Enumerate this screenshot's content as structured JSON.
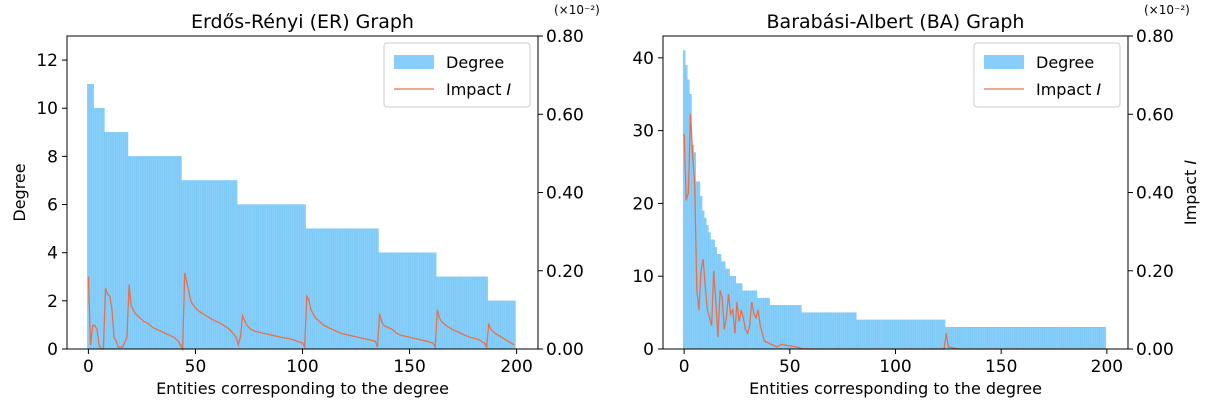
{
  "chart_data": [
    {
      "type": "bar",
      "title": "Erdős-Rényi (ER) Graph",
      "xlabel": "Entities corresponding to the degree",
      "ylabel": "Degree",
      "y2label": "",
      "xlim": [
        -10,
        210
      ],
      "ylim": [
        0,
        13
      ],
      "y2lim": [
        0,
        0.8
      ],
      "y2_multiplier": "(×10⁻²)",
      "x_ticks": [
        0,
        50,
        100,
        150,
        200
      ],
      "y_ticks": [
        0,
        2,
        4,
        6,
        8,
        10,
        12
      ],
      "y2_ticks": [
        "0.00",
        "0.20",
        "0.40",
        "0.60",
        "0.80"
      ],
      "legend": {
        "position": "top-right",
        "entries": [
          "Degree",
          "Impact I"
        ]
      },
      "series": [
        {
          "name": "Degree",
          "kind": "bar",
          "color": "#87cefa",
          "steps": [
            {
              "from": 0,
              "to": 2,
              "value": 11
            },
            {
              "from": 3,
              "to": 7,
              "value": 10
            },
            {
              "from": 8,
              "to": 18,
              "value": 9
            },
            {
              "from": 19,
              "to": 43,
              "value": 8
            },
            {
              "from": 44,
              "to": 69,
              "value": 7
            },
            {
              "from": 70,
              "to": 101,
              "value": 6
            },
            {
              "from": 102,
              "to": 135,
              "value": 5
            },
            {
              "from": 136,
              "to": 162,
              "value": 4
            },
            {
              "from": 163,
              "to": 186,
              "value": 3
            },
            {
              "from": 187,
              "to": 199,
              "value": 2
            }
          ]
        },
        {
          "name": "Impact I",
          "kind": "line",
          "axis": "y2",
          "color": "#e8704d",
          "x": [
            0,
            1,
            2,
            3,
            4,
            5,
            6,
            7,
            8,
            9,
            10,
            11,
            12,
            13,
            14,
            16,
            18,
            19,
            20,
            21,
            22,
            24,
            26,
            28,
            30,
            32,
            34,
            36,
            38,
            40,
            42,
            43,
            44,
            45,
            46,
            47,
            48,
            50,
            52,
            55,
            58,
            62,
            66,
            69,
            70,
            71,
            72,
            74,
            76,
            78,
            82,
            86,
            90,
            95,
            100,
            101,
            102,
            103,
            104,
            106,
            108,
            110,
            114,
            118,
            122,
            126,
            130,
            134,
            135,
            136,
            137,
            138,
            140,
            142,
            144,
            146,
            150,
            154,
            158,
            161,
            162,
            163,
            164,
            165,
            167,
            170,
            174,
            178,
            182,
            185,
            186,
            187,
            188,
            190,
            193,
            196,
            199
          ],
          "values": [
            0.185,
            0.01,
            0.06,
            0.06,
            0.05,
            0.01,
            0.0,
            0.0,
            0.155,
            0.14,
            0.135,
            0.1,
            0.03,
            0.02,
            0.005,
            0.005,
            0.03,
            0.165,
            0.11,
            0.1,
            0.09,
            0.08,
            0.07,
            0.065,
            0.055,
            0.05,
            0.045,
            0.04,
            0.035,
            0.03,
            0.02,
            0.01,
            0.0,
            0.195,
            0.17,
            0.145,
            0.12,
            0.105,
            0.095,
            0.085,
            0.075,
            0.065,
            0.05,
            0.03,
            0.01,
            0.03,
            0.085,
            0.06,
            0.05,
            0.045,
            0.04,
            0.035,
            0.03,
            0.025,
            0.015,
            0.005,
            0.135,
            0.125,
            0.1,
            0.08,
            0.07,
            0.06,
            0.05,
            0.04,
            0.035,
            0.03,
            0.025,
            0.02,
            0.005,
            0.09,
            0.07,
            0.06,
            0.055,
            0.05,
            0.04,
            0.035,
            0.03,
            0.025,
            0.02,
            0.015,
            0.005,
            0.1,
            0.08,
            0.07,
            0.06,
            0.05,
            0.04,
            0.03,
            0.025,
            0.015,
            0.005,
            0.065,
            0.05,
            0.04,
            0.03,
            0.02,
            0.01
          ]
        }
      ]
    },
    {
      "type": "bar",
      "title": "Barabási-Albert (BA) Graph",
      "xlabel": "Entities corresponding to the degree",
      "ylabel": "",
      "y2label": "Impact I",
      "xlim": [
        -10,
        210
      ],
      "ylim": [
        0,
        43
      ],
      "y2lim": [
        0,
        0.8
      ],
      "y2_multiplier": "(×10⁻²)",
      "x_ticks": [
        0,
        50,
        100,
        150,
        200
      ],
      "y_ticks": [
        0,
        10,
        20,
        30,
        40
      ],
      "y2_ticks": [
        "0.00",
        "0.20",
        "0.40",
        "0.60",
        "0.80"
      ],
      "legend": {
        "position": "top-right",
        "entries": [
          "Degree",
          "Impact I"
        ]
      },
      "series": [
        {
          "name": "Degree",
          "kind": "bar",
          "color": "#87cefa",
          "values_head": [
            41,
            39,
            37,
            35,
            28,
            27,
            23,
            23,
            21,
            19,
            18,
            17,
            16,
            15,
            15,
            14,
            13,
            13,
            12,
            12,
            11,
            11,
            10,
            10,
            10,
            9,
            9,
            9,
            8,
            8
          ],
          "steps": [
            {
              "from": 30,
              "to": 34,
              "value": 8
            },
            {
              "from": 35,
              "to": 40,
              "value": 7
            },
            {
              "from": 41,
              "to": 55,
              "value": 6
            },
            {
              "from": 56,
              "to": 81,
              "value": 5
            },
            {
              "from": 82,
              "to": 123,
              "value": 4
            },
            {
              "from": 124,
              "to": 199,
              "value": 3
            }
          ]
        },
        {
          "name": "Impact I",
          "kind": "line",
          "axis": "y2",
          "color": "#e8704d",
          "x": [
            0,
            1,
            2,
            3,
            4,
            5,
            6,
            7,
            8,
            9,
            10,
            11,
            12,
            13,
            14,
            15,
            16,
            17,
            18,
            19,
            20,
            21,
            22,
            23,
            24,
            25,
            26,
            27,
            28,
            29,
            30,
            31,
            32,
            33,
            34,
            35,
            36,
            37,
            38,
            40,
            42,
            44,
            46,
            48,
            50,
            52,
            54,
            55,
            56,
            60,
            65,
            70,
            75,
            80,
            85,
            90,
            95,
            100,
            105,
            110,
            115,
            120,
            122,
            123,
            124,
            125,
            130,
            140,
            150,
            160,
            170,
            180,
            190,
            199
          ],
          "values": [
            0.55,
            0.38,
            0.4,
            0.6,
            0.5,
            0.42,
            0.15,
            0.1,
            0.2,
            0.23,
            0.16,
            0.1,
            0.08,
            0.06,
            0.2,
            0.12,
            0.03,
            0.15,
            0.13,
            0.05,
            0.08,
            0.14,
            0.09,
            0.1,
            0.04,
            0.12,
            0.07,
            0.1,
            0.08,
            0.05,
            0.04,
            0.06,
            0.12,
            0.09,
            0.08,
            0.1,
            0.06,
            0.04,
            0.02,
            0.015,
            0.01,
            0.005,
            0.012,
            0.01,
            0.008,
            0.006,
            0.004,
            0.002,
            0.001,
            0.0,
            0.0,
            0.0,
            0.0,
            0.0,
            0.0,
            0.0,
            0.0,
            0.0,
            0.0,
            0.0,
            0.0,
            0.0,
            0.0,
            0.0,
            0.04,
            0.005,
            0.0,
            0.0,
            0.0,
            0.0,
            0.0,
            0.0,
            0.0,
            0.0
          ]
        }
      ]
    }
  ]
}
